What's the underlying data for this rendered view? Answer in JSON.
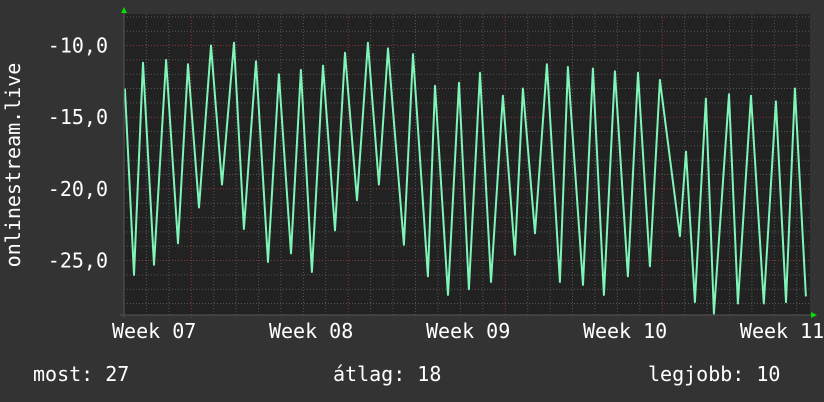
{
  "chart_data": {
    "type": "line",
    "ylabel": "onlinestream.live",
    "ylim": [
      -28.8,
      -7.8
    ],
    "xlim": [
      7.0,
      11.37
    ],
    "yticks": [
      -10,
      -15,
      -20,
      -25
    ],
    "ytick_labels": [
      "-10,0",
      "-15,0",
      "-20,0",
      "-25,0"
    ],
    "xticks": [
      7,
      8,
      9,
      10,
      11
    ],
    "xtick_labels": [
      "Week 07",
      "Week 08",
      "Week 09",
      "Week 10",
      "Week 11"
    ],
    "grid": true,
    "colors": {
      "line": "#7ff5b8",
      "plot_bg": "#222222",
      "page_bg": "#333333",
      "grid_minor": "#555555",
      "grid_major": "#8a3a3a",
      "axis_arrow": "#00e000"
    },
    "series": [
      {
        "x": [
          7.006,
          7.064,
          7.121,
          7.191,
          7.268,
          7.344,
          7.408,
          7.478,
          7.554,
          7.624,
          7.701,
          7.764,
          7.841,
          7.917,
          7.987,
          8.064,
          8.127,
          8.197,
          8.268,
          8.344,
          8.408,
          8.484,
          8.554,
          8.624,
          8.682,
          8.783,
          8.841,
          8.936,
          8.981,
          9.064,
          9.134,
          9.197,
          9.268,
          9.338,
          9.414,
          9.49,
          9.541,
          9.618,
          9.694,
          9.777,
          9.828,
          9.924,
          9.987,
          10.057,
          10.127,
          10.21,
          10.274,
          10.35,
          10.414,
          10.541,
          10.58,
          10.637,
          10.707,
          10.758,
          10.854,
          10.911,
          10.994,
          11.076,
          11.153,
          11.217,
          11.274,
          11.344
        ],
        "y": [
          -13,
          -26,
          -11.2,
          -25.3,
          -11,
          -23.8,
          -11.3,
          -21.3,
          -10,
          -19.7,
          -9.8,
          -22.8,
          -11.1,
          -25.1,
          -12,
          -24.5,
          -11.7,
          -25.8,
          -11.4,
          -22.9,
          -10.5,
          -20.8,
          -9.8,
          -19.7,
          -10.2,
          -23.9,
          -10.6,
          -26.1,
          -12.8,
          -27.4,
          -12.6,
          -27,
          -11.9,
          -26.5,
          -13.5,
          -24.6,
          -13,
          -23.1,
          -11.3,
          -26.5,
          -11.5,
          -26.7,
          -11.6,
          -27.4,
          -11.8,
          -26.1,
          -11.9,
          -25.4,
          -12.4,
          -23.3,
          -17.4,
          -27.9,
          -13.7,
          -28.7,
          -13.4,
          -28,
          -13.5,
          -28,
          -13.9,
          -27.9,
          -13,
          -27.5
        ]
      }
    ]
  },
  "legend": {
    "current": "most: 27",
    "average": "átlag: 18",
    "best": "legjobb: 10"
  }
}
